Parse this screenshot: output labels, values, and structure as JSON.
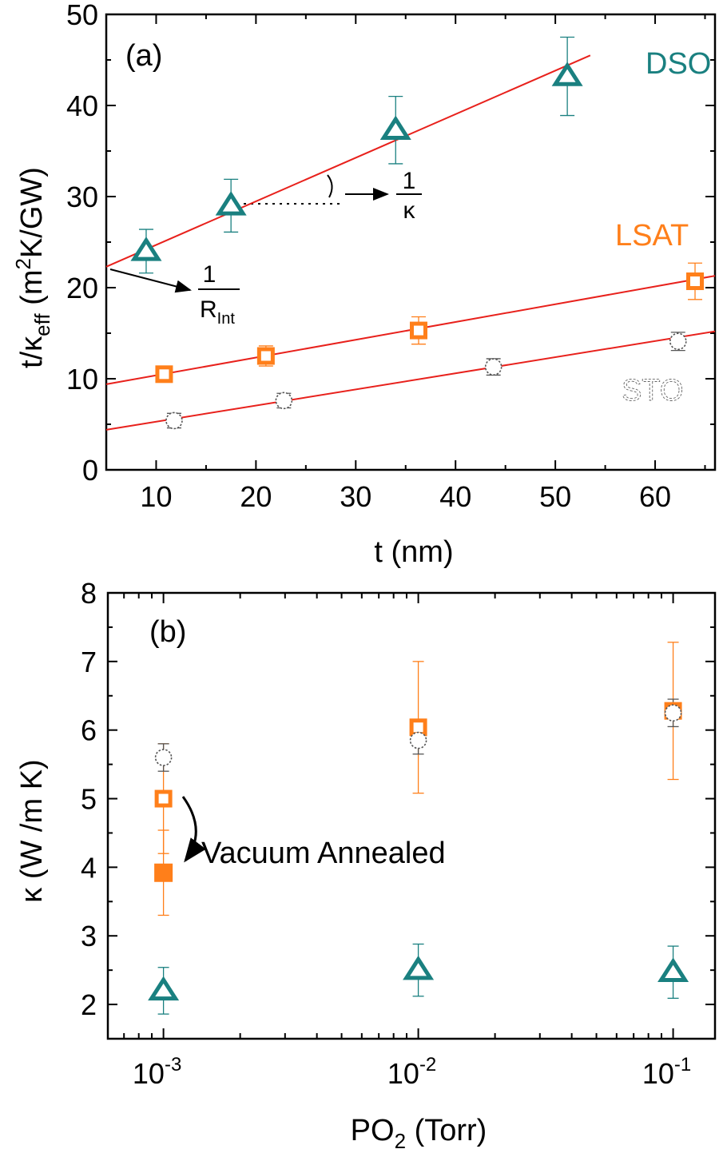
{
  "colors": {
    "DSO": "#1a8080",
    "LSAT": "#ff7f1a",
    "STO": "#555555",
    "fit": "#e8211c",
    "axis": "#000000"
  },
  "chart_data": [
    {
      "panel": "(a)",
      "type": "scatter",
      "xlabel": "t (nm)",
      "ylabel": "t/κ",
      "ylabel_sub": "eff",
      "ylabel_unit_pre": " (m",
      "ylabel_unit_sup": "2",
      "ylabel_unit_post": "K/GW)",
      "xlim": [
        5,
        66
      ],
      "ylim": [
        0,
        50
      ],
      "xticks": [
        10,
        20,
        30,
        40,
        50,
        60
      ],
      "yticks": [
        0,
        10,
        20,
        30,
        40,
        50
      ],
      "series": [
        {
          "name": "DSO",
          "marker": "triangle",
          "x": [
            9,
            17.5,
            34,
            51.2
          ],
          "y": [
            24,
            29,
            37.3,
            43.2
          ],
          "err": [
            2.4,
            2.9,
            3.7,
            4.3
          ],
          "fit": {
            "x": [
              5,
              53.5
            ],
            "y": [
              22.3,
              45.5
            ]
          }
        },
        {
          "name": "LSAT",
          "marker": "square",
          "x": [
            10.8,
            21,
            36.3,
            64
          ],
          "y": [
            10.5,
            12.5,
            15.3,
            20.7
          ],
          "err": [
            0.6,
            1.1,
            1.5,
            2.0
          ],
          "fit": {
            "x": [
              5,
              66
            ],
            "y": [
              9.4,
              21.3
            ]
          }
        },
        {
          "name": "STO",
          "marker": "circle",
          "x": [
            11.8,
            22.8,
            43.8,
            62.3
          ],
          "y": [
            5.4,
            7.6,
            11.3,
            14.1
          ],
          "err": [
            0.8,
            0.8,
            0.9,
            1.0
          ],
          "fit": {
            "x": [
              5,
              66
            ],
            "y": [
              4.4,
              15.2
            ]
          }
        }
      ],
      "annotations": {
        "kappa_num": "1",
        "kappa_den": "κ",
        "rint_num": "1",
        "rint_den": "R",
        "rint_sub": "Int"
      }
    },
    {
      "panel": "(b)",
      "type": "scatter",
      "xlabel": "PO",
      "xlabel_sub": "2",
      "xlabel_post": " (Torr)",
      "ylabel": "κ (W /m K)",
      "xscale": "log",
      "xlim": [
        0.000605,
        0.146
      ],
      "ylim": [
        1.5,
        8
      ],
      "xticks": [
        {
          "value": 0.001,
          "base": "10",
          "exp": "-3"
        },
        {
          "value": 0.01,
          "base": "10",
          "exp": "-2"
        },
        {
          "value": 0.1,
          "base": "10",
          "exp": "-1"
        }
      ],
      "yticks": [
        2,
        3,
        4,
        5,
        6,
        7,
        8
      ],
      "series": [
        {
          "name": "LSAT",
          "marker": "square",
          "x": [
            0.001,
            0.01,
            0.1
          ],
          "y": [
            5.0,
            6.04,
            6.28
          ],
          "err": [
            0.8,
            0.96,
            1.0
          ]
        },
        {
          "name": "STO",
          "marker": "circle",
          "x": [
            0.001,
            0.01,
            0.1
          ],
          "y": [
            5.6,
            5.85,
            6.25
          ],
          "err": [
            0.2,
            0.2,
            0.2
          ]
        },
        {
          "name": "DSO",
          "marker": "triangle",
          "x": [
            0.001,
            0.01,
            0.1
          ],
          "y": [
            2.2,
            2.5,
            2.47
          ],
          "err": [
            0.34,
            0.38,
            0.38
          ]
        },
        {
          "name": "LSAT annealed",
          "marker": "square-filled",
          "x": [
            0.001
          ],
          "y": [
            3.92
          ],
          "err": [
            0.62
          ]
        }
      ],
      "annotation": "Vacuum Annealed"
    }
  ]
}
